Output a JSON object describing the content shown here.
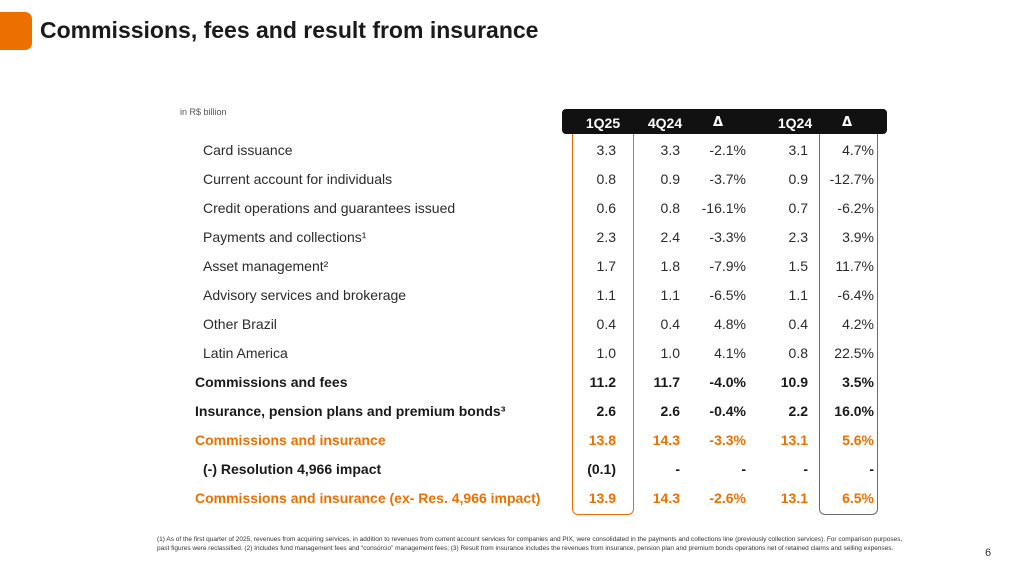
{
  "slide": {
    "title": "Commissions, fees and result from insurance",
    "unit_label": "in R$ billion",
    "page_number": "6",
    "accent_color": "#ec7000"
  },
  "table": {
    "headers": [
      "1Q25",
      "4Q24",
      "Δ",
      "1Q24",
      "Δ"
    ],
    "rows": [
      {
        "label": "Card issuance",
        "style": "normal",
        "values": [
          "3.3",
          "3.3",
          "-2.1%",
          "3.1",
          "4.7%"
        ]
      },
      {
        "label": "Current account for individuals",
        "style": "normal",
        "values": [
          "0.8",
          "0.9",
          "-3.7%",
          "0.9",
          "-12.7%"
        ]
      },
      {
        "label": "Credit operations and guarantees issued",
        "style": "normal",
        "values": [
          "0.6",
          "0.8",
          "-16.1%",
          "0.7",
          "-6.2%"
        ]
      },
      {
        "label": "Payments and collections¹",
        "style": "normal",
        "values": [
          "2.3",
          "2.4",
          "-3.3%",
          "2.3",
          "3.9%"
        ]
      },
      {
        "label": "Asset management²",
        "style": "normal",
        "values": [
          "1.7",
          "1.8",
          "-7.9%",
          "1.5",
          "11.7%"
        ]
      },
      {
        "label": "Advisory services and brokerage",
        "style": "normal",
        "values": [
          "1.1",
          "1.1",
          "-6.5%",
          "1.1",
          "-6.4%"
        ]
      },
      {
        "label": "Other Brazil",
        "style": "normal",
        "values": [
          "0.4",
          "0.4",
          "4.8%",
          "0.4",
          "4.2%"
        ]
      },
      {
        "label": "Latin America",
        "style": "normal",
        "values": [
          "1.0",
          "1.0",
          "4.1%",
          "0.8",
          "22.5%"
        ]
      },
      {
        "label": "Commissions and fees",
        "style": "bold",
        "values": [
          "11.2",
          "11.7",
          "-4.0%",
          "10.9",
          "3.5%"
        ]
      },
      {
        "label": "Insurance, pension plans and premium bonds³",
        "style": "bold",
        "values": [
          "2.6",
          "2.6",
          "-0.4%",
          "2.2",
          "16.0%"
        ]
      },
      {
        "label": "Commissions and insurance",
        "style": "orange",
        "values": [
          "13.8",
          "14.3",
          "-3.3%",
          "13.1",
          "5.6%"
        ]
      },
      {
        "label": "(-) Resolution 4,966 impact",
        "style": "subbold",
        "values": [
          "(0.1)",
          "-",
          "-",
          "-",
          "-"
        ]
      },
      {
        "label": "Commissions and insurance (ex- Res. 4,966 impact)",
        "style": "orange",
        "values": [
          "13.9",
          "14.3",
          "-2.6%",
          "13.1",
          "6.5%"
        ]
      }
    ]
  },
  "footnote": "(1) As of the first quarter of 2025, revenues from acquiring services, in addition to revenues from current account services for companies and PIX, were consolidated in the payments and collections line (previously collection services). For comparison purposes, past figures were reclassified. (2) Includes fund management fees and “consórcio” management fees; (3) Result from insurance includes the revenues from insurance, pension plan and premium bonds operations net of retained claims and selling expenses."
}
